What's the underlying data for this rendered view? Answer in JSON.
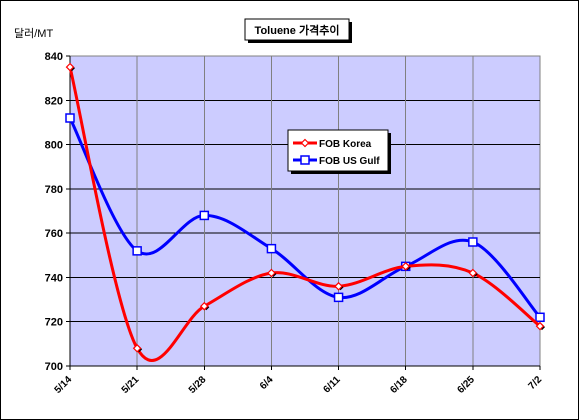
{
  "chart_data": {
    "type": "line",
    "title": "Toluene 가격추이",
    "ylabel": "달러/MT",
    "xlabel": "",
    "categories": [
      "5/14",
      "5/21",
      "5/28",
      "6/4",
      "6/11",
      "6/18",
      "6/25",
      "7/2"
    ],
    "ylim": [
      700,
      840
    ],
    "yticks": [
      700,
      720,
      740,
      760,
      780,
      800,
      820,
      840
    ],
    "grid": true,
    "legend": "center-right",
    "plot_background": "#ccccff",
    "series": [
      {
        "name": "FOB Korea",
        "color": "#ff0000",
        "marker": "diamond",
        "values": [
          835,
          708,
          727,
          742,
          736,
          745,
          742,
          718
        ]
      },
      {
        "name": "FOB US Gulf",
        "color": "#0000ff",
        "marker": "square",
        "values": [
          812,
          752,
          768,
          753,
          731,
          745,
          756,
          722
        ]
      }
    ]
  }
}
